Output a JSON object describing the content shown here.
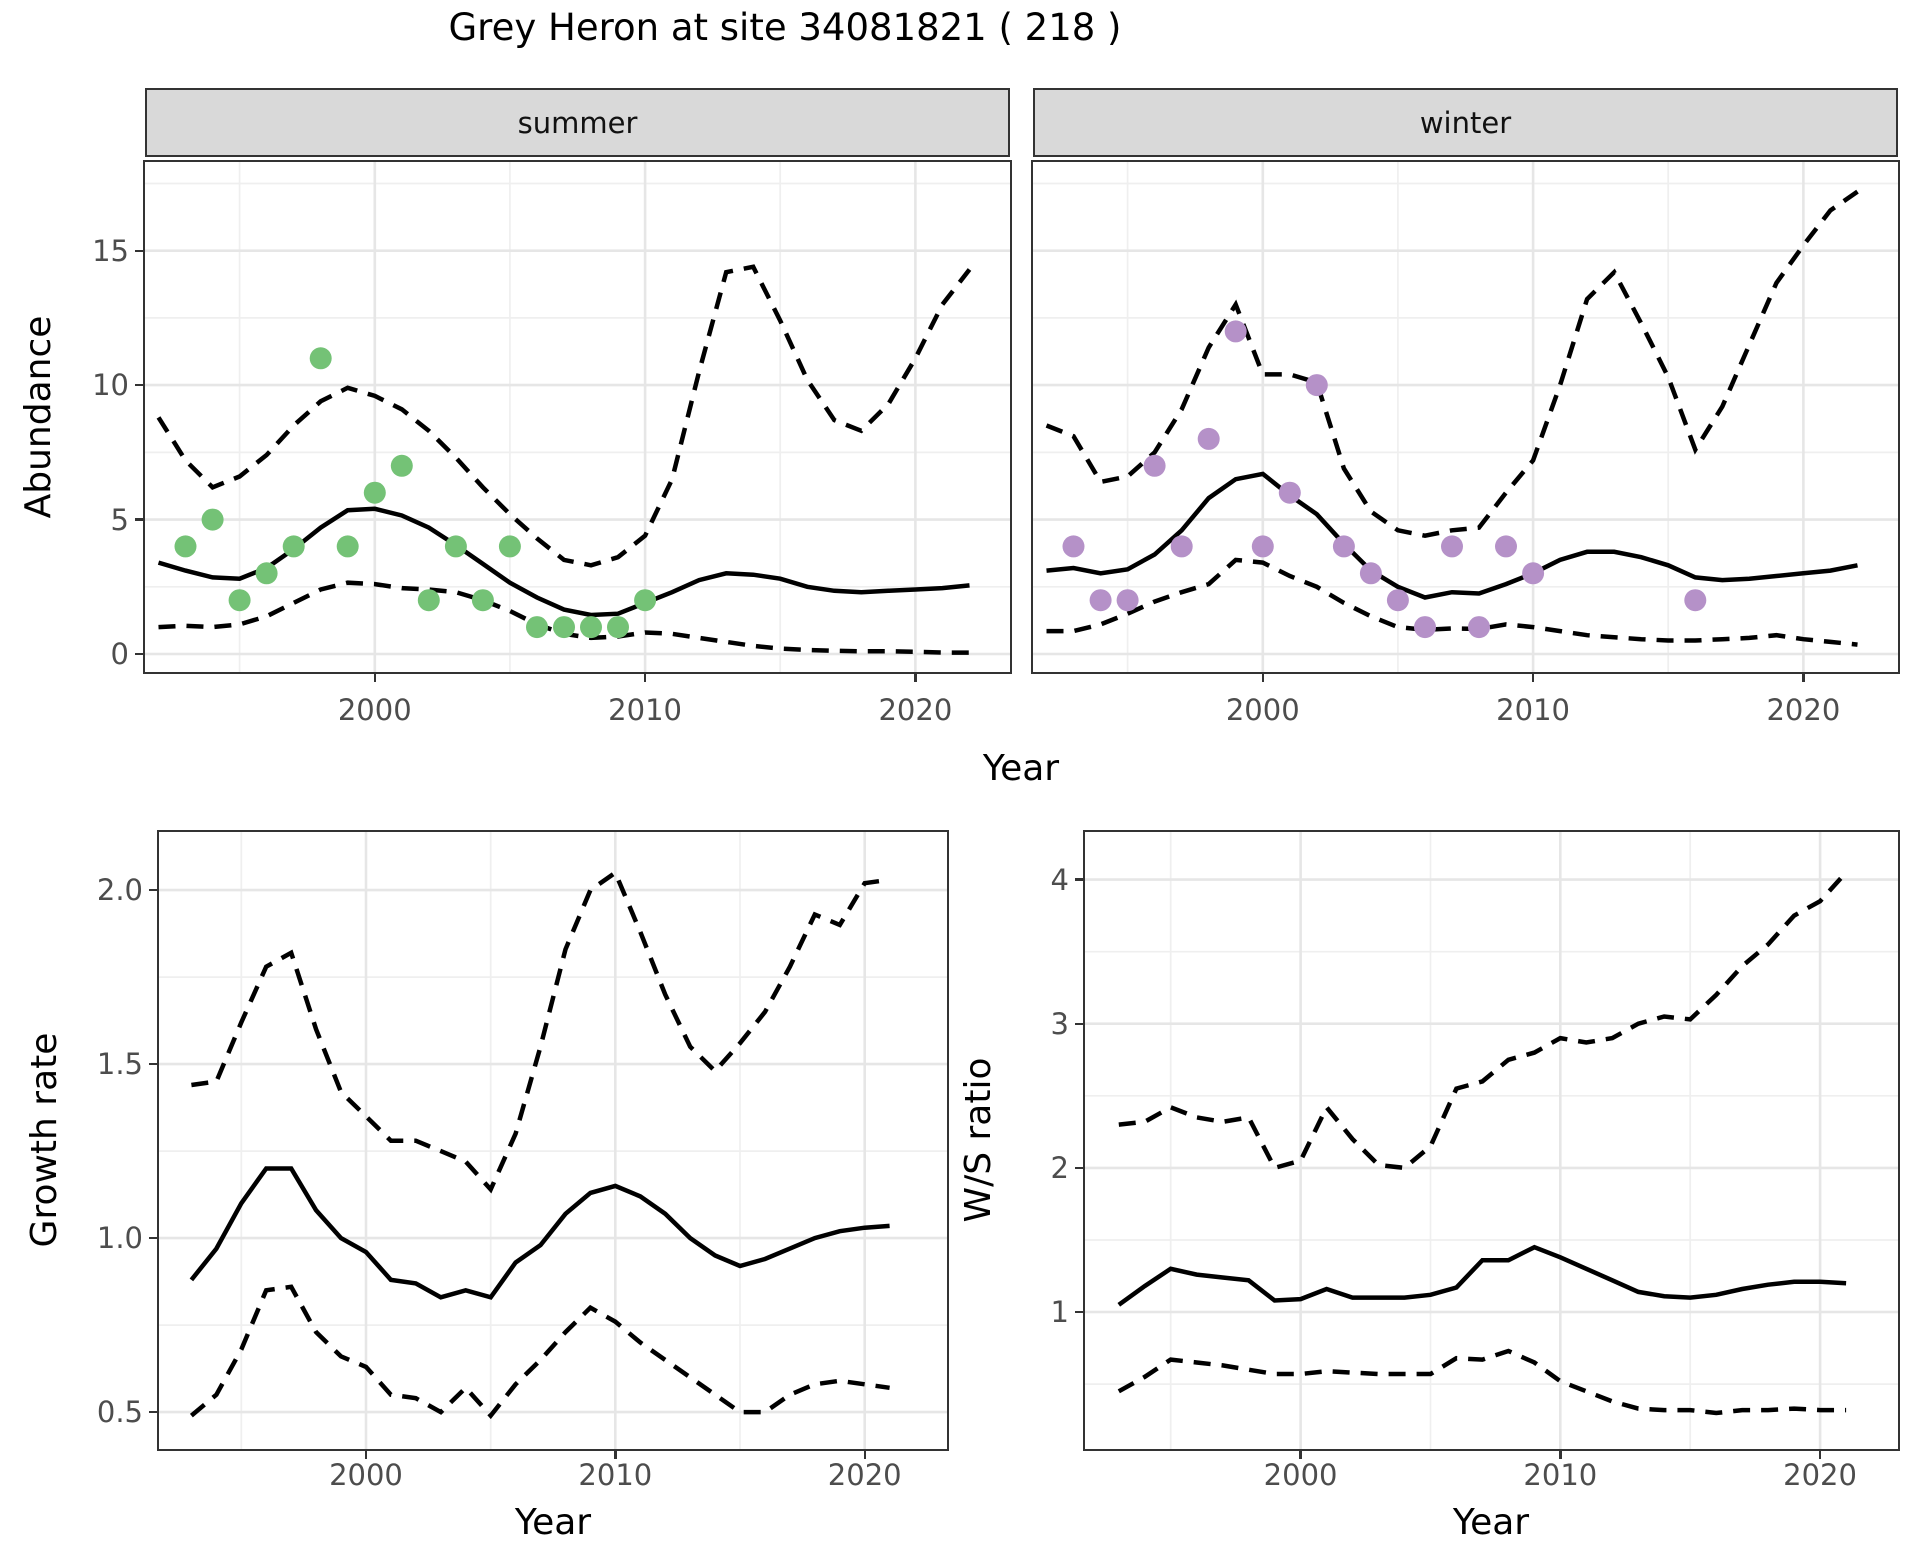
{
  "labels": {
    "title": "Grey Heron at site 34081821 ( 218 )",
    "strip_summer": "summer",
    "strip_winter": "winter",
    "abundance": "Abundance",
    "growth_rate": "Growth rate",
    "ws_ratio": "W/S ratio",
    "year": "Year"
  },
  "colors": {
    "line": "#000000",
    "grid_major": "#e6e6e6",
    "grid_minor": "#efefef",
    "panel_border": "#333333",
    "strip_bg": "#d9d9d9",
    "tick_text": "#4d4d4d",
    "summer_points": "#74c276",
    "winter_points": "#b591c8"
  },
  "chart_data": [
    {
      "name": "summer-abundance",
      "type": "line",
      "facet": "summer",
      "xlabel": "Year",
      "ylabel": "Abundance",
      "xlim": [
        1991.5,
        2023.5
      ],
      "ylim": [
        -0.67,
        18.3
      ],
      "x_ticks": {
        "major": [
          2000,
          2010,
          2020
        ],
        "minor": [
          1995,
          2005,
          2015
        ],
        "labels": [
          "2000",
          "2010",
          "2020"
        ]
      },
      "y_ticks": {
        "major": [
          0,
          5,
          10,
          15
        ],
        "minor": [
          2.5,
          7.5,
          12.5,
          17.5
        ],
        "labels": [
          "0",
          "5",
          "10",
          "15"
        ]
      },
      "point_color": "#74c276",
      "points": {
        "x": [
          1993,
          1994,
          1995,
          1996,
          1997,
          1998,
          1999,
          2000,
          2001,
          2002,
          2003,
          2004,
          2005,
          2006,
          2007,
          2008,
          2009,
          2010
        ],
        "y": [
          4,
          5,
          2,
          3,
          4,
          11,
          4,
          6,
          7,
          2,
          4,
          2,
          4,
          1,
          1,
          1,
          1,
          2
        ]
      },
      "series": {
        "mean": {
          "x": [
            1992,
            1993,
            1994,
            1995,
            1996,
            1997,
            1998,
            1999,
            2000,
            2001,
            2002,
            2003,
            2004,
            2005,
            2006,
            2007,
            2008,
            2009,
            2010,
            2011,
            2012,
            2013,
            2014,
            2015,
            2016,
            2017,
            2018,
            2019,
            2020,
            2021,
            2022
          ],
          "y": [
            3.4,
            3.1,
            2.85,
            2.8,
            3.2,
            3.9,
            4.7,
            5.35,
            5.4,
            5.15,
            4.7,
            4.05,
            3.35,
            2.65,
            2.1,
            1.65,
            1.45,
            1.5,
            1.9,
            2.3,
            2.75,
            3.0,
            2.95,
            2.8,
            2.5,
            2.35,
            2.3,
            2.35,
            2.4,
            2.45,
            2.55
          ]
        },
        "upper": {
          "x": [
            1992,
            1993,
            1994,
            1995,
            1996,
            1997,
            1998,
            1999,
            2000,
            2001,
            2002,
            2003,
            2004,
            2005,
            2006,
            2007,
            2008,
            2009,
            2010,
            2011,
            2012,
            2013,
            2014,
            2015,
            2016,
            2017,
            2018,
            2019,
            2020,
            2021,
            2022
          ],
          "y": [
            8.8,
            7.2,
            6.2,
            6.6,
            7.4,
            8.5,
            9.4,
            9.9,
            9.6,
            9.1,
            8.3,
            7.3,
            6.2,
            5.2,
            4.3,
            3.5,
            3.3,
            3.6,
            4.4,
            6.5,
            10.5,
            14.2,
            14.4,
            12.4,
            10.2,
            8.7,
            8.3,
            9.3,
            11.0,
            13.0,
            14.3
          ]
        },
        "lower": {
          "x": [
            1992,
            1993,
            1994,
            1995,
            1996,
            1997,
            1998,
            1999,
            2000,
            2001,
            2002,
            2003,
            2004,
            2005,
            2006,
            2007,
            2008,
            2009,
            2010,
            2011,
            2012,
            2013,
            2014,
            2015,
            2016,
            2017,
            2018,
            2019,
            2020,
            2021,
            2022
          ],
          "y": [
            1.0,
            1.05,
            1.0,
            1.1,
            1.4,
            1.9,
            2.4,
            2.65,
            2.6,
            2.45,
            2.4,
            2.3,
            2.0,
            1.6,
            1.1,
            0.75,
            0.6,
            0.65,
            0.8,
            0.75,
            0.6,
            0.45,
            0.3,
            0.2,
            0.15,
            0.12,
            0.1,
            0.1,
            0.08,
            0.05,
            0.05
          ]
        }
      }
    },
    {
      "name": "winter-abundance",
      "type": "line",
      "facet": "winter",
      "xlabel": "Year",
      "ylabel": "Abundance",
      "xlim": [
        1991.5,
        2023.5
      ],
      "ylim": [
        -0.67,
        18.3
      ],
      "x_ticks": {
        "major": [
          2000,
          2010,
          2020
        ],
        "minor": [
          1995,
          2005,
          2015
        ],
        "labels": [
          "2000",
          "2010",
          "2020"
        ]
      },
      "y_ticks": {
        "major": [
          0,
          5,
          10,
          15
        ],
        "minor": [
          2.5,
          7.5,
          12.5,
          17.5
        ],
        "labels": [
          "0",
          "5",
          "10",
          "15"
        ]
      },
      "point_color": "#b591c8",
      "points": {
        "x": [
          1993,
          1994,
          1995,
          1996,
          1997,
          1998,
          1999,
          2000,
          2001,
          2002,
          2003,
          2004,
          2005,
          2006,
          2007,
          2008,
          2009,
          2010,
          2016
        ],
        "y": [
          4,
          2,
          2,
          7,
          4,
          8,
          12,
          4,
          6,
          10,
          4,
          3,
          2,
          1,
          4,
          1,
          4,
          3,
          2
        ]
      },
      "series": {
        "mean": {
          "x": [
            1992,
            1993,
            1994,
            1995,
            1996,
            1997,
            1998,
            1999,
            2000,
            2001,
            2002,
            2003,
            2004,
            2005,
            2006,
            2007,
            2008,
            2009,
            2010,
            2011,
            2012,
            2013,
            2014,
            2015,
            2016,
            2017,
            2018,
            2019,
            2020,
            2021,
            2022
          ],
          "y": [
            3.1,
            3.2,
            3.0,
            3.15,
            3.7,
            4.6,
            5.8,
            6.5,
            6.7,
            5.9,
            5.2,
            4.1,
            3.1,
            2.5,
            2.1,
            2.3,
            2.25,
            2.6,
            3.0,
            3.5,
            3.8,
            3.8,
            3.6,
            3.3,
            2.85,
            2.75,
            2.8,
            2.9,
            3.0,
            3.1,
            3.3
          ]
        },
        "upper": {
          "x": [
            1992,
            1993,
            1994,
            1995,
            1996,
            1997,
            1998,
            1999,
            2000,
            2001,
            2002,
            2003,
            2004,
            2005,
            2006,
            2007,
            2008,
            2009,
            2010,
            2011,
            2012,
            2013,
            2014,
            2015,
            2016,
            2017,
            2018,
            2019,
            2020,
            2021,
            2022
          ],
          "y": [
            8.5,
            8.1,
            6.4,
            6.6,
            7.5,
            9.1,
            11.4,
            13.0,
            10.4,
            10.4,
            10.1,
            6.9,
            5.3,
            4.6,
            4.4,
            4.6,
            4.7,
            6.0,
            7.2,
            10.0,
            13.2,
            14.2,
            12.3,
            10.3,
            7.6,
            9.2,
            11.5,
            13.8,
            15.2,
            16.5,
            17.2
          ]
        },
        "lower": {
          "x": [
            1992,
            1993,
            1994,
            1995,
            1996,
            1997,
            1998,
            1999,
            2000,
            2001,
            2002,
            2003,
            2004,
            2005,
            2006,
            2007,
            2008,
            2009,
            2010,
            2011,
            2012,
            2013,
            2014,
            2015,
            2016,
            2017,
            2018,
            2019,
            2020,
            2021,
            2022
          ],
          "y": [
            0.85,
            0.85,
            1.1,
            1.5,
            1.95,
            2.3,
            2.6,
            3.5,
            3.4,
            2.9,
            2.5,
            1.9,
            1.4,
            1.0,
            0.9,
            0.95,
            0.93,
            1.1,
            1.0,
            0.85,
            0.7,
            0.62,
            0.55,
            0.5,
            0.5,
            0.55,
            0.6,
            0.7,
            0.55,
            0.45,
            0.35
          ]
        }
      }
    },
    {
      "name": "growth-rate",
      "type": "line",
      "xlabel": "Year",
      "ylabel": "Growth rate",
      "xlim": [
        1991.7,
        2023.3
      ],
      "ylim": [
        0.394,
        2.167
      ],
      "x_ticks": {
        "major": [
          2000,
          2010,
          2020
        ],
        "minor": [
          1995,
          2005,
          2015
        ],
        "labels": [
          "2000",
          "2010",
          "2020"
        ]
      },
      "y_ticks": {
        "major": [
          0.5,
          1.0,
          1.5,
          2.0
        ],
        "minor": [
          0.75,
          1.25,
          1.75
        ],
        "labels": [
          "0.5",
          "1.0",
          "1.5",
          "2.0"
        ]
      },
      "series": {
        "mean": {
          "x": [
            1993,
            1994,
            1995,
            1996,
            1997,
            1998,
            1999,
            2000,
            2001,
            2002,
            2003,
            2004,
            2005,
            2006,
            2007,
            2008,
            2009,
            2010,
            2011,
            2012,
            2013,
            2014,
            2015,
            2016,
            2017,
            2018,
            2019,
            2020,
            2021
          ],
          "y": [
            0.88,
            0.97,
            1.1,
            1.2,
            1.2,
            1.08,
            1.0,
            0.96,
            0.88,
            0.87,
            0.83,
            0.85,
            0.83,
            0.93,
            0.98,
            1.07,
            1.13,
            1.15,
            1.12,
            1.07,
            1.0,
            0.95,
            0.92,
            0.94,
            0.97,
            1.0,
            1.02,
            1.03,
            1.035
          ]
        },
        "upper": {
          "x": [
            1993,
            1994,
            1995,
            1996,
            1997,
            1998,
            1999,
            2000,
            2001,
            2002,
            2003,
            2004,
            2005,
            2006,
            2007,
            2008,
            2009,
            2010,
            2011,
            2012,
            2013,
            2014,
            2015,
            2016,
            2017,
            2018,
            2019,
            2020,
            2021
          ],
          "y": [
            1.44,
            1.45,
            1.62,
            1.78,
            1.82,
            1.6,
            1.42,
            1.35,
            1.28,
            1.28,
            1.25,
            1.22,
            1.14,
            1.3,
            1.55,
            1.83,
            2.0,
            2.05,
            1.88,
            1.7,
            1.55,
            1.48,
            1.56,
            1.65,
            1.78,
            1.93,
            1.9,
            2.02,
            2.03
          ]
        },
        "lower": {
          "x": [
            1993,
            1994,
            1995,
            1996,
            1997,
            1998,
            1999,
            2000,
            2001,
            2002,
            2003,
            2004,
            2005,
            2006,
            2007,
            2008,
            2009,
            2010,
            2011,
            2012,
            2013,
            2014,
            2015,
            2016,
            2017,
            2018,
            2019,
            2020,
            2021
          ],
          "y": [
            0.49,
            0.55,
            0.68,
            0.85,
            0.86,
            0.73,
            0.66,
            0.63,
            0.55,
            0.54,
            0.5,
            0.57,
            0.49,
            0.58,
            0.65,
            0.73,
            0.8,
            0.76,
            0.7,
            0.65,
            0.6,
            0.55,
            0.5,
            0.5,
            0.55,
            0.58,
            0.59,
            0.58,
            0.57
          ]
        }
      }
    },
    {
      "name": "ws-ratio",
      "type": "line",
      "xlabel": "Year",
      "ylabel": "W/S ratio",
      "xlim": [
        1991.7,
        2023.0
      ],
      "ylim": [
        0.05,
        4.33
      ],
      "x_ticks": {
        "major": [
          2000,
          2010,
          2020
        ],
        "minor": [
          1995,
          2005,
          2015
        ],
        "labels": [
          "2000",
          "2010",
          "2020"
        ]
      },
      "y_ticks": {
        "major": [
          1,
          2,
          3,
          4
        ],
        "minor": [
          0.5,
          1.5,
          2.5,
          3.5
        ],
        "labels": [
          "1",
          "2",
          "3",
          "4"
        ]
      },
      "series": {
        "mean": {
          "x": [
            1993,
            1994,
            1995,
            1996,
            1997,
            1998,
            1999,
            2000,
            2001,
            2002,
            2003,
            2004,
            2005,
            2006,
            2007,
            2008,
            2009,
            2010,
            2011,
            2012,
            2013,
            2014,
            2015,
            2016,
            2017,
            2018,
            2019,
            2020,
            2021
          ],
          "y": [
            1.05,
            1.18,
            1.3,
            1.26,
            1.24,
            1.22,
            1.08,
            1.09,
            1.16,
            1.1,
            1.1,
            1.1,
            1.12,
            1.17,
            1.36,
            1.36,
            1.45,
            1.38,
            1.3,
            1.22,
            1.14,
            1.11,
            1.1,
            1.12,
            1.16,
            1.19,
            1.21,
            1.21,
            1.2
          ]
        },
        "upper": {
          "x": [
            1993,
            1994,
            1995,
            1996,
            1997,
            1998,
            1999,
            2000,
            2001,
            2002,
            2003,
            2004,
            2005,
            2006,
            2007,
            2008,
            2009,
            2010,
            2011,
            2012,
            2013,
            2014,
            2015,
            2016,
            2017,
            2018,
            2019,
            2020,
            2021
          ],
          "y": [
            2.3,
            2.32,
            2.42,
            2.35,
            2.32,
            2.35,
            2.0,
            2.05,
            2.42,
            2.2,
            2.02,
            2.0,
            2.15,
            2.55,
            2.6,
            2.75,
            2.8,
            2.9,
            2.87,
            2.9,
            3.0,
            3.05,
            3.03,
            3.2,
            3.4,
            3.55,
            3.75,
            3.85,
            4.05
          ]
        },
        "lower": {
          "x": [
            1993,
            1994,
            1995,
            1996,
            1997,
            1998,
            1999,
            2000,
            2001,
            2002,
            2003,
            2004,
            2005,
            2006,
            2007,
            2008,
            2009,
            2010,
            2011,
            2012,
            2013,
            2014,
            2015,
            2016,
            2017,
            2018,
            2019,
            2020,
            2021
          ],
          "y": [
            0.45,
            0.55,
            0.67,
            0.65,
            0.63,
            0.6,
            0.57,
            0.57,
            0.59,
            0.58,
            0.57,
            0.57,
            0.57,
            0.68,
            0.67,
            0.73,
            0.65,
            0.52,
            0.45,
            0.38,
            0.33,
            0.32,
            0.32,
            0.3,
            0.32,
            0.32,
            0.33,
            0.32,
            0.32
          ]
        }
      }
    }
  ]
}
